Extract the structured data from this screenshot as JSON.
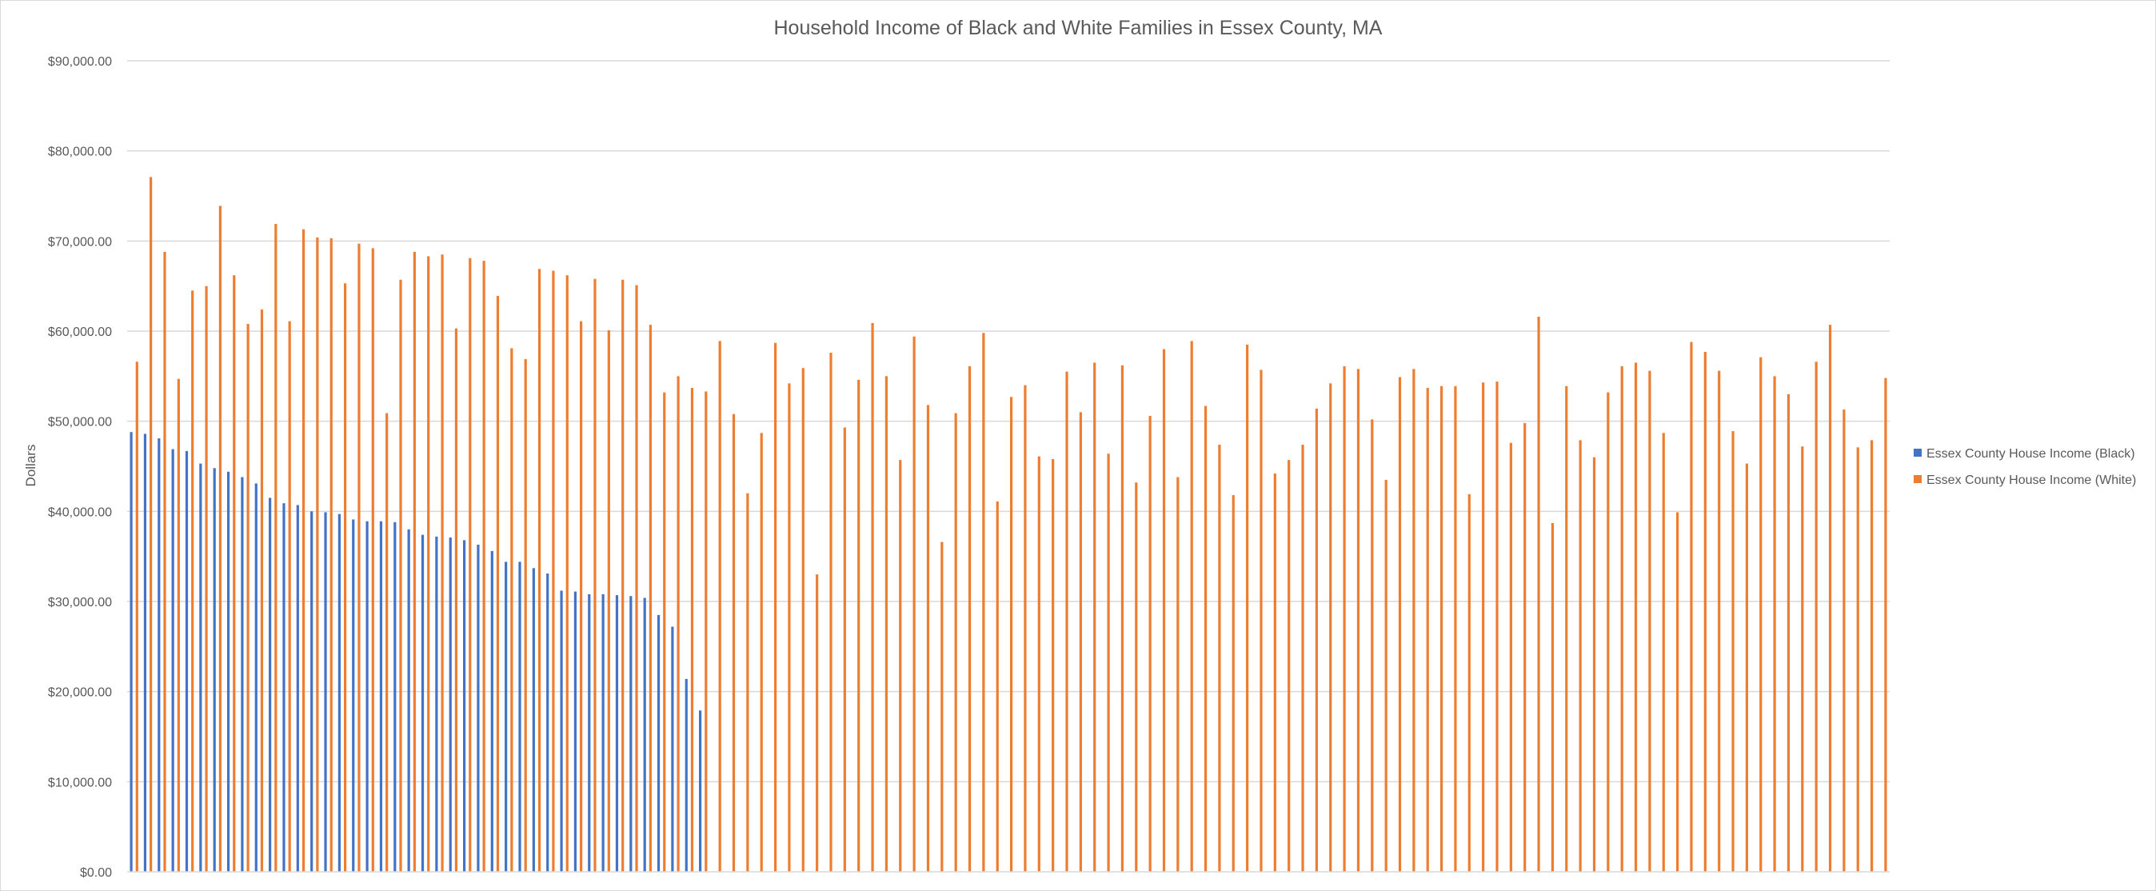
{
  "chart_data": {
    "type": "bar",
    "title": "Household Income of Black and White Families in Essex County, MA",
    "xlabel": "",
    "ylabel": "Dollars",
    "ylim": [
      0,
      90000
    ],
    "y_ticks": [
      "$0.00",
      "$10,000.00",
      "$20,000.00",
      "$30,000.00",
      "$40,000.00",
      "$50,000.00",
      "$60,000.00",
      "$70,000.00",
      "$80,000.00",
      "$90,000.00"
    ],
    "grid": true,
    "legend_position": "right",
    "series": [
      {
        "name": "Essex County House Income (Black)",
        "color": "#4472C4",
        "values": [
          48800,
          48600,
          48100,
          46900,
          46700,
          45300,
          44800,
          44400,
          43800,
          43100,
          41500,
          40900,
          40700,
          40000,
          39900,
          39700,
          39100,
          38900,
          38900,
          38800,
          38000,
          37400,
          37200,
          37100,
          36800,
          36300,
          35600,
          34400,
          34400,
          33700,
          33100,
          31200,
          31100,
          30800,
          30800,
          30700,
          30600,
          30400,
          28500,
          27200,
          21400,
          17900
        ]
      },
      {
        "name": "Essex County House Income (White)",
        "color": "#ED7D31",
        "values": [
          56600,
          77100,
          68800,
          54700,
          64500,
          65000,
          73900,
          66200,
          60800,
          62400,
          71900,
          61100,
          71300,
          70400,
          70300,
          65300,
          69700,
          69200,
          50900,
          65700,
          68800,
          68300,
          68500,
          60300,
          68100,
          67800,
          63900,
          58100,
          56900,
          66900,
          66700,
          66200,
          61100,
          65800,
          60100,
          65700,
          65100,
          60700,
          53200,
          55000,
          53700,
          53300,
          58900,
          50800,
          42000,
          48700,
          58700,
          54200,
          55900,
          33000,
          57600,
          49300,
          54600,
          60900,
          55000,
          45700,
          59400,
          51800,
          36600,
          50900,
          56100,
          59800,
          41100,
          52700,
          54000,
          46100,
          45800,
          55500,
          51000,
          56500,
          46400,
          56200,
          43200,
          50600,
          58000,
          43800,
          58900,
          51700,
          47400,
          41800,
          58500,
          55700,
          44200,
          45700,
          47400,
          51400,
          54200,
          56100,
          55800,
          50200,
          43500,
          54900,
          55800,
          53700,
          53900,
          53900,
          41900,
          54300,
          54400,
          47600,
          49800,
          61600,
          38700,
          53900,
          47900,
          46000,
          53200,
          56100,
          56500,
          55600,
          48700,
          39900,
          58800,
          57700,
          55600,
          48900,
          45300,
          57100,
          55000,
          53000,
          47200,
          56600,
          60700,
          51300,
          47100,
          47900,
          54800
        ]
      }
    ]
  }
}
